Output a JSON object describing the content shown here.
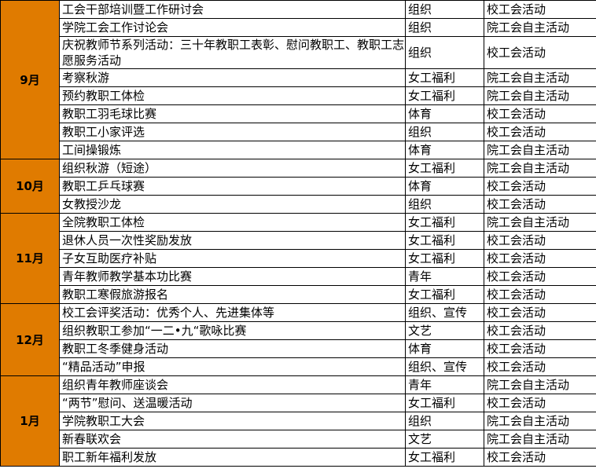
{
  "groups": [
    {
      "month": "9月",
      "items": [
        [
          "工会干部培训暨工作研讨会",
          "组织",
          "校工会活动"
        ],
        [
          "学院工会工作讨论会",
          "组织",
          "院工会自主活动"
        ],
        [
          "庆祝教师节系列活动：三十年教职工表彰、慰问教职工、教职工志愿服务活动",
          "组织",
          "校工会活动"
        ],
        [
          "考察秋游",
          "女工福利",
          "院工会自主活动"
        ],
        [
          "预约教职工体检",
          "女工福利",
          "院工会自主活动"
        ],
        [
          "教职工羽毛球比赛",
          "体育",
          "校工会活动"
        ],
        [
          "教职工小家评选",
          "组织",
          "校工会活动"
        ],
        [
          "工间操锻炼",
          "体育",
          "院工会自主活动"
        ]
      ]
    },
    {
      "month": "10月",
      "items": [
        [
          "组织秋游（短途）",
          "女工福利",
          "院工会自主活动"
        ],
        [
          "教职工乒乓球赛",
          "体育",
          "校工会活动"
        ],
        [
          "女教授沙龙",
          "组织",
          "校工会活动"
        ]
      ]
    },
    {
      "month": "11月",
      "items": [
        [
          "全院教职工体检",
          "女工福利",
          "院工会自主活动"
        ],
        [
          "退休人员一次性奖励发放",
          "女工福利",
          "校工会活动"
        ],
        [
          "子女互助医疗补贴",
          "女工福利",
          "校工会活动"
        ],
        [
          "青年教师教学基本功比赛",
          "青年",
          "校工会活动"
        ],
        [
          "教职工寒假旅游报名",
          "女工福利",
          "校工会活动"
        ]
      ]
    },
    {
      "month": "12月",
      "items": [
        [
          "校工会评奖活动：优秀个人、先进集体等",
          "组织、宣传",
          "校工会活动"
        ],
        [
          "组织教职工参加“一二•九“歌咏比赛",
          "文艺",
          "校工会活动"
        ],
        [
          "教职工冬季健身活动",
          "体育",
          "校工会活动"
        ],
        [
          "“精品活动”申报",
          "组织、宣传",
          "校工会活动"
        ]
      ]
    },
    {
      "month": "1月",
      "items": [
        [
          "组织青年教师座谈会",
          "青年",
          "院工会自主活动"
        ],
        [
          "“两节”慰问、送温暖活动",
          "女工福利",
          "校工会活动"
        ],
        [
          "学院教职工大会",
          "组织",
          "院工会自主活动"
        ],
        [
          "新春联欢会",
          "文艺",
          "院工会自主活动"
        ],
        [
          "职工新年福利发放",
          "女工福利",
          "校工会活动"
        ]
      ]
    }
  ]
}
